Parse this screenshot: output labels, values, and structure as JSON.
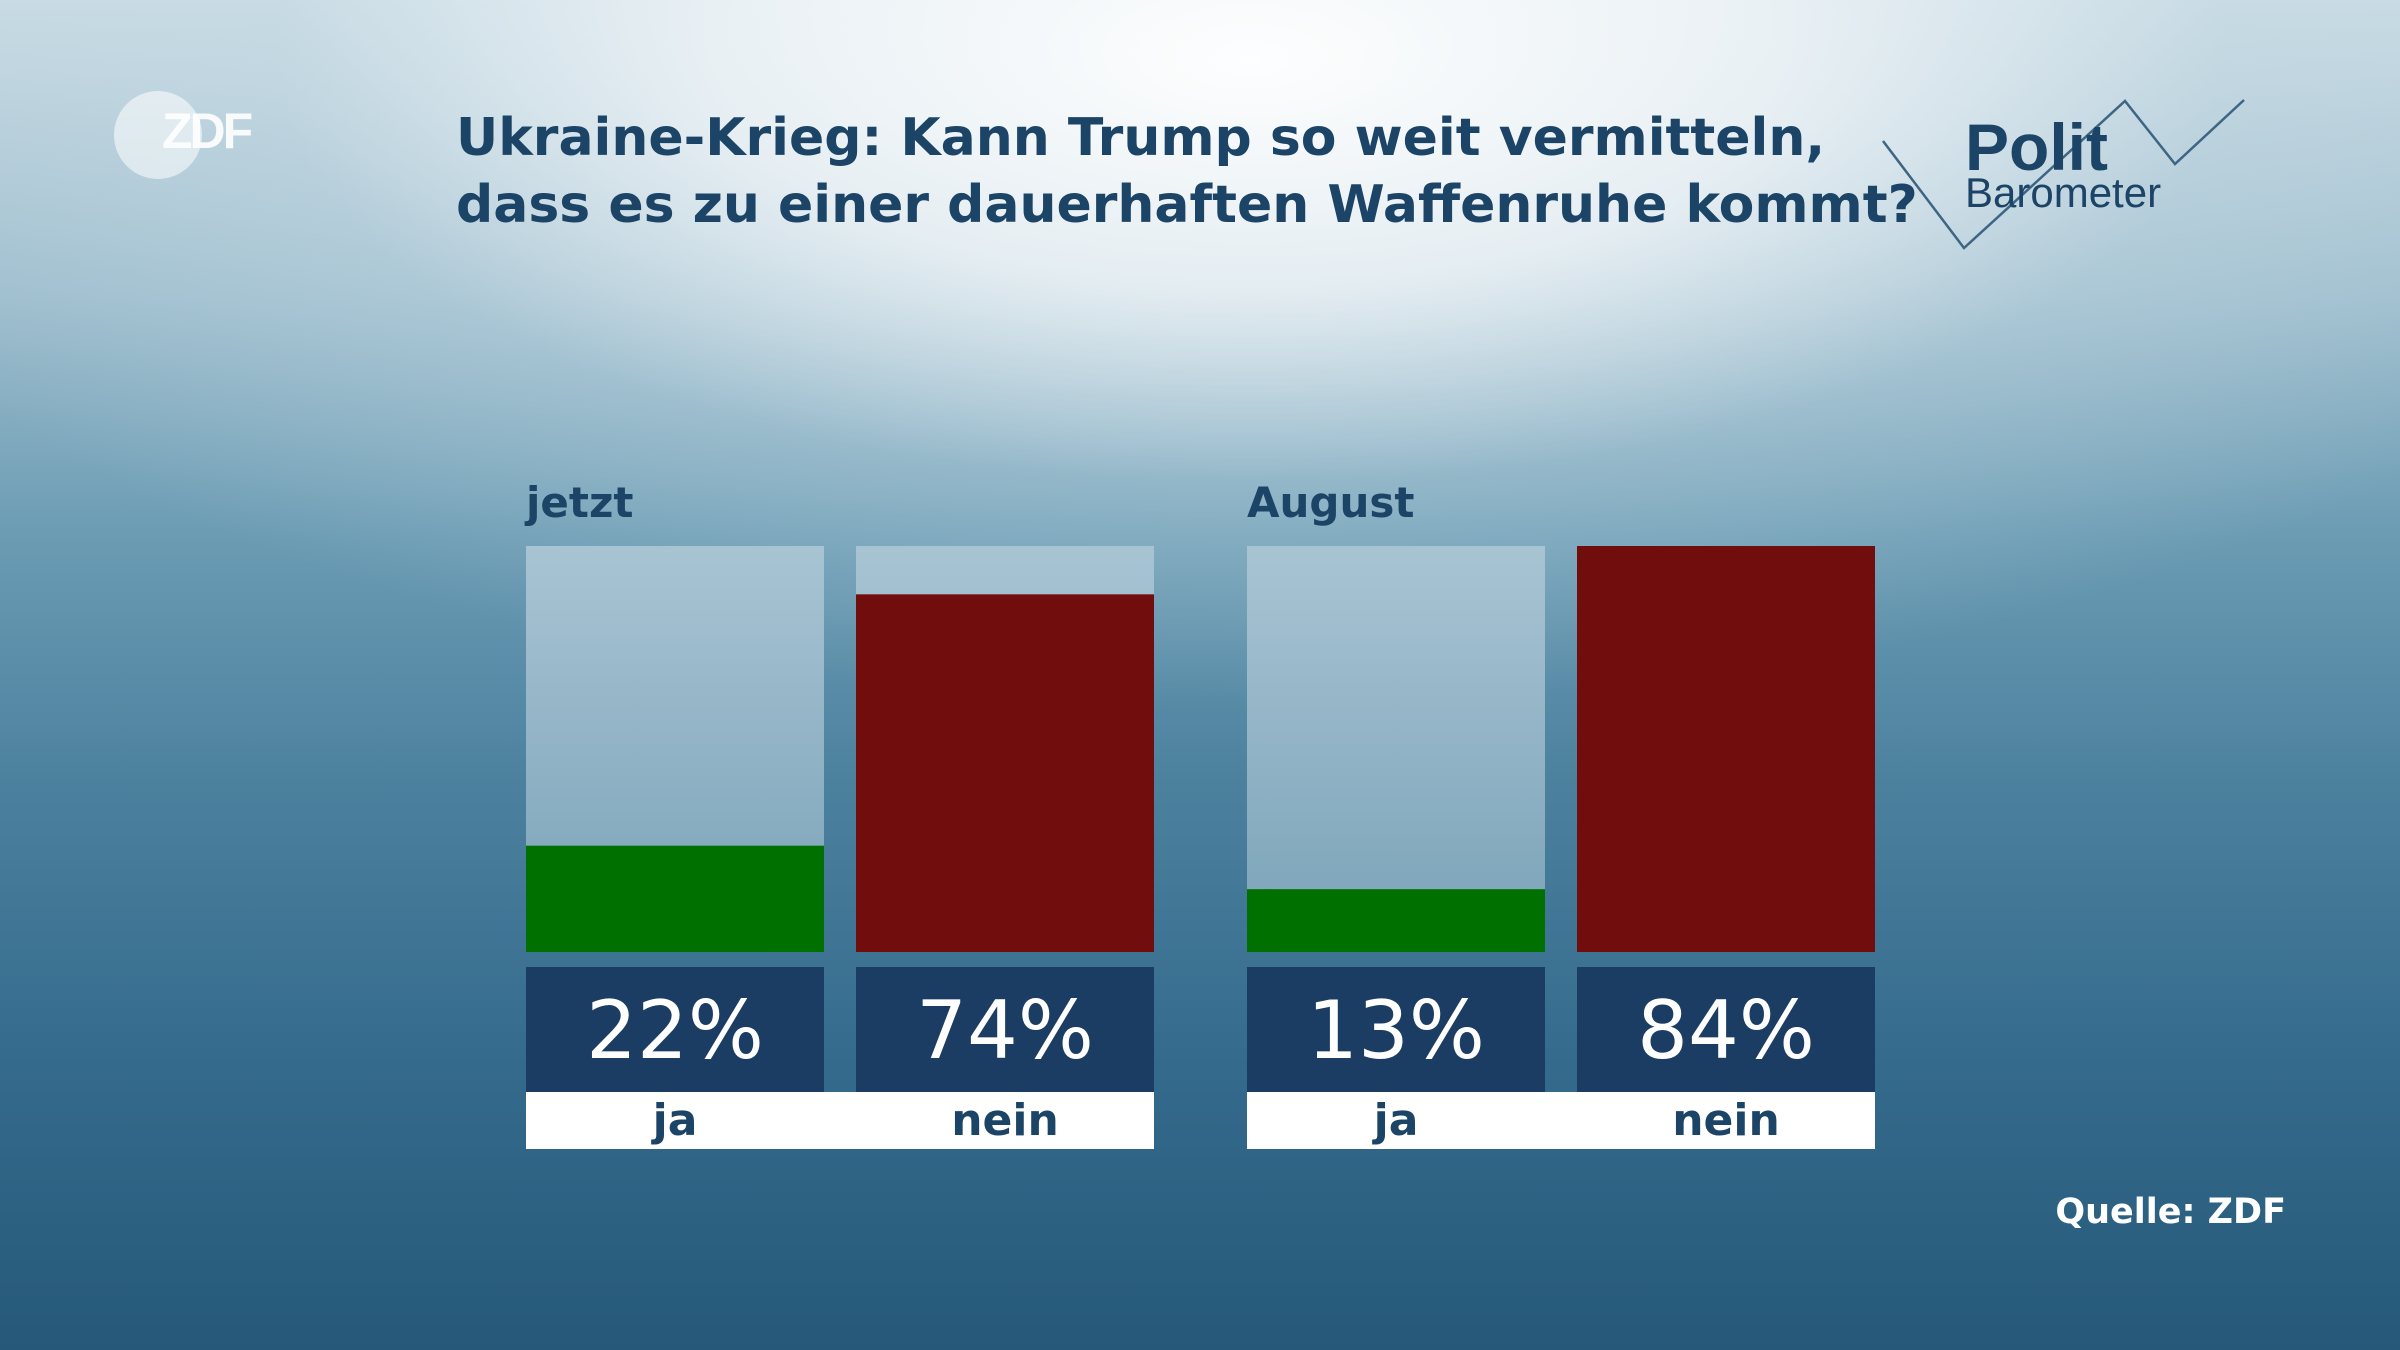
{
  "logo": {
    "text": "ZDF"
  },
  "branding": {
    "line1": "Polit",
    "line2": "Barometer"
  },
  "source": "Quelle: ZDF",
  "colors": {
    "ja": "#007000",
    "nein": "#720d0d",
    "label_box": "#1b3d63",
    "label_text": "#1c4466"
  },
  "chart_data": {
    "type": "bar",
    "title": "Ukraine-Krieg: Kann Trump so weit vermitteln, dass es zu einer dauerhaften Waffenruhe kommt?",
    "title_lines": [
      "Ukraine-Krieg: Kann Trump so weit vermitteln,",
      "dass es zu einer dauerhaften Waffenruhe kommt?"
    ],
    "ylim": [
      0,
      84
    ],
    "groups": [
      {
        "label": "jetzt",
        "bars": [
          {
            "category": "ja",
            "value": 22,
            "label": "22%"
          },
          {
            "category": "nein",
            "value": 74,
            "label": "74%"
          }
        ]
      },
      {
        "label": "August",
        "bars": [
          {
            "category": "ja",
            "value": 13,
            "label": "13%"
          },
          {
            "category": "nein",
            "value": 84,
            "label": "84%"
          }
        ]
      }
    ]
  }
}
